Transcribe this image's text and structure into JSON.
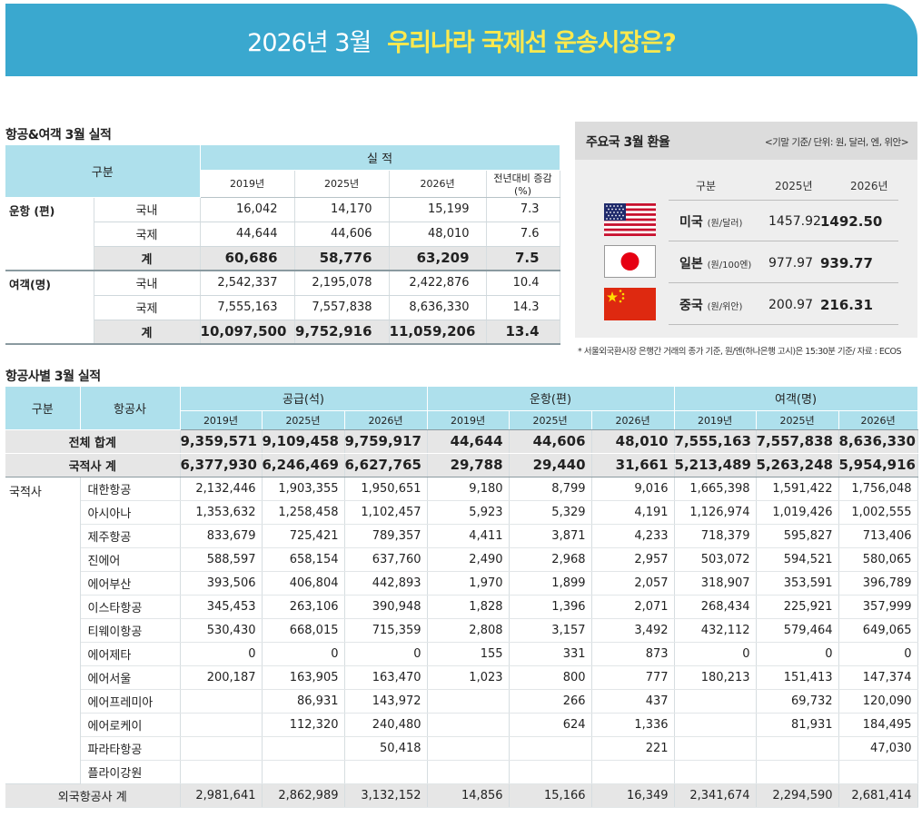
{
  "banner": {
    "date": "2026년 3월",
    "headline": "우리나라 국제선 운송시장은?"
  },
  "section1": {
    "title": "항공&여객 3월 실적"
  },
  "table1": {
    "group_header": "구분",
    "results_header": "실 적",
    "years": [
      "2019년",
      "2025년",
      "2026년"
    ],
    "change_header": "전년대비 증감(%)",
    "flights": {
      "label": "운항 (편)",
      "rows": [
        {
          "sub": "국내",
          "v": [
            "16,042",
            "14,170",
            "15,199",
            "7.3"
          ]
        },
        {
          "sub": "국제",
          "v": [
            "44,644",
            "44,606",
            "48,010",
            "7.6"
          ]
        },
        {
          "sub": "계",
          "v": [
            "60,686",
            "58,776",
            "63,209",
            "7.5"
          ]
        }
      ]
    },
    "passengers": {
      "label": "여객(명)",
      "rows": [
        {
          "sub": "국내",
          "v": [
            "2,542,337",
            "2,195,078",
            "2,422,876",
            "10.4"
          ]
        },
        {
          "sub": "국제",
          "v": [
            "7,555,163",
            "7,557,838",
            "8,636,330",
            "14.3"
          ]
        },
        {
          "sub": "계",
          "v": [
            "10,097,500",
            "9,752,916",
            "11,059,206",
            "13.4"
          ]
        }
      ]
    }
  },
  "fx": {
    "title": "주요국 3월 환율",
    "unit": "<기말 기준/ 단위: 원, 달러, 엔, 위안>",
    "col_group": "구분",
    "col_2025": "2025년",
    "col_2026": "2026년",
    "rows": [
      {
        "name": "미국",
        "unit": "(원/달러)",
        "v2025": "1457.92",
        "v2026": "1492.50",
        "flag": "us-flag-icon"
      },
      {
        "name": "일본",
        "unit": "(원/100엔)",
        "v2025": "977.97",
        "v2026": "939.77",
        "flag": "japan-flag-icon"
      },
      {
        "name": "중국",
        "unit": "(원/위안)",
        "v2025": "200.97",
        "v2026": "216.31",
        "flag": "china-flag-icon"
      }
    ],
    "note": "* 서울외국환시장 은행간 거래의 종가 기준, 원/엔(하나은행 고시)은 15:30분 기준/ 자료 : ECOS"
  },
  "section2": {
    "title": "항공사별 3월 실적"
  },
  "table2": {
    "col_group": "구분",
    "col_airline": "항공사",
    "groups": [
      "공급(석)",
      "운항(편)",
      "여객(명)"
    ],
    "years": [
      "2019년",
      "2025년",
      "2026년"
    ],
    "total": {
      "label": "전체 합계",
      "v": [
        "9,359,571",
        "9,109,458",
        "9,759,917",
        "44,644",
        "44,606",
        "48,010",
        "7,555,163",
        "7,557,838",
        "8,636,330"
      ]
    },
    "domestic_total": {
      "label": "국적사 계",
      "v": [
        "6,377,930",
        "6,246,469",
        "6,627,765",
        "29,788",
        "29,440",
        "31,661",
        "5,213,489",
        "5,263,248",
        "5,954,916"
      ]
    },
    "domestic_label": "국적사",
    "airlines": [
      {
        "name": "대한항공",
        "v": [
          "2,132,446",
          "1,903,355",
          "1,950,651",
          "9,180",
          "8,799",
          "9,016",
          "1,665,398",
          "1,591,422",
          "1,756,048"
        ]
      },
      {
        "name": "아시아나",
        "v": [
          "1,353,632",
          "1,258,458",
          "1,102,457",
          "5,923",
          "5,329",
          "4,191",
          "1,126,974",
          "1,019,426",
          "1,002,555"
        ]
      },
      {
        "name": "제주항공",
        "v": [
          "833,679",
          "725,421",
          "789,357",
          "4,411",
          "3,871",
          "4,233",
          "718,379",
          "595,827",
          "713,406"
        ]
      },
      {
        "name": "진에어",
        "v": [
          "588,597",
          "658,154",
          "637,760",
          "2,490",
          "2,968",
          "2,957",
          "503,072",
          "594,521",
          "580,065"
        ]
      },
      {
        "name": "에어부산",
        "v": [
          "393,506",
          "406,804",
          "442,893",
          "1,970",
          "1,899",
          "2,057",
          "318,907",
          "353,591",
          "396,789"
        ]
      },
      {
        "name": "이스타항공",
        "v": [
          "345,453",
          "263,106",
          "390,948",
          "1,828",
          "1,396",
          "2,071",
          "268,434",
          "225,921",
          "357,999"
        ]
      },
      {
        "name": "티웨이항공",
        "v": [
          "530,430",
          "668,015",
          "715,359",
          "2,808",
          "3,157",
          "3,492",
          "432,112",
          "579,464",
          "649,065"
        ]
      },
      {
        "name": "에어제타",
        "v": [
          "0",
          "0",
          "0",
          "155",
          "331",
          "873",
          "0",
          "0",
          "0"
        ]
      },
      {
        "name": "에어서울",
        "v": [
          "200,187",
          "163,905",
          "163,470",
          "1,023",
          "800",
          "777",
          "180,213",
          "151,413",
          "147,374"
        ]
      },
      {
        "name": "에어프레미아",
        "v": [
          "",
          "86,931",
          "143,972",
          "",
          "266",
          "437",
          "",
          "69,732",
          "120,090"
        ]
      },
      {
        "name": "에어로케이",
        "v": [
          "",
          "112,320",
          "240,480",
          "",
          "624",
          "1,336",
          "",
          "81,931",
          "184,495"
        ]
      },
      {
        "name": "파라타항공",
        "v": [
          "",
          "",
          "50,418",
          "",
          "",
          "221",
          "",
          "",
          "47,030"
        ]
      },
      {
        "name": "플라이강원",
        "v": [
          "",
          "",
          "",
          "",
          "",
          "",
          "",
          "",
          ""
        ]
      }
    ],
    "foreign_total": {
      "label": "외국항공사 계",
      "v": [
        "2,981,641",
        "2,862,989",
        "3,132,152",
        "14,856",
        "15,166",
        "16,349",
        "2,341,674",
        "2,294,590",
        "2,681,414"
      ]
    }
  }
}
